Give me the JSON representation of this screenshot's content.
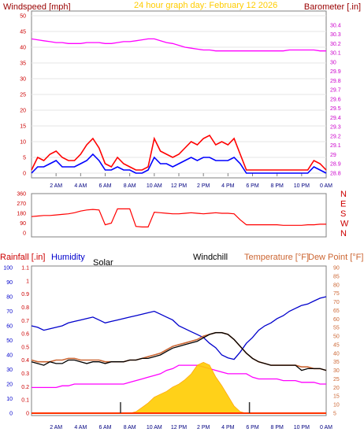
{
  "header": {
    "title": "24 hour graph day: February 12 2026",
    "left_label": "Windspeed [mph]",
    "right_label": "Barometer [.in]"
  },
  "panel3_labels": {
    "rainfall": "Rainfall [.in]",
    "humidity": "Humidity",
    "solar": "Solar",
    "windchill": "Windchill",
    "temperature": "Temperature [°F]",
    "dewpoint": "Dew Point [°F]"
  },
  "colors": {
    "windspeed_gust": "#ff0000",
    "windspeed_avg": "#0000ff",
    "barometer": "#ff00ff",
    "title": "#ffcc00",
    "header_label": "#990000",
    "direction": "#ff0000",
    "rainfall": "#cc0000",
    "humidity": "#0000cc",
    "windchill": "#000000",
    "temperature": "#cc6633",
    "dewpoint": "#ff00ff",
    "solar": "#ffcc00",
    "rain_line": "#ff3300"
  },
  "chart_data": [
    {
      "type": "line",
      "title": "24 hour graph day: February 12 2026",
      "ylabel": "Windspeed [mph]",
      "y2label": "Barometer [.in]",
      "x_ticks": [
        "2 AM",
        "4 AM",
        "6 AM",
        "8 AM",
        "10 AM",
        "12 PM",
        "2 PM",
        "4 PM",
        "6 PM",
        "8 PM",
        "10 PM",
        "0 AM"
      ],
      "ylim": [
        0,
        50
      ],
      "y_ticks": [
        "0",
        "5",
        "10",
        "15",
        "20",
        "25",
        "30",
        "35",
        "40",
        "45",
        "50"
      ],
      "y2lim": [
        28.8,
        30.5
      ],
      "y2_ticks": [
        "28.8",
        "28.9",
        "29",
        "29.1",
        "29.2",
        "29.3",
        "29.4",
        "29.5",
        "29.6",
        "29.7",
        "29.8",
        "29.9",
        "30",
        "30.1",
        "30.2",
        "30.3",
        "30.4"
      ],
      "x": [
        0,
        0.5,
        1,
        1.5,
        2,
        2.5,
        3,
        3.5,
        4,
        4.5,
        5,
        5.5,
        6,
        6.5,
        7,
        7.5,
        8,
        8.5,
        9,
        9.5,
        10,
        10.5,
        11,
        11.5,
        12,
        12.5,
        13,
        13.5,
        14,
        14.5,
        15,
        15.5,
        16,
        16.5,
        17,
        17.5,
        18,
        18.5,
        19,
        19.5,
        20,
        20.5,
        21,
        21.5,
        22,
        22.5,
        23,
        23.5,
        24
      ],
      "series": [
        {
          "name": "Wind Gust",
          "axis": "left",
          "values": [
            1,
            5,
            4,
            6,
            7,
            5,
            4,
            4,
            6,
            9,
            11,
            8,
            3,
            2,
            5,
            3,
            2,
            1,
            1,
            2,
            11,
            7,
            6,
            5,
            6,
            8,
            10,
            9,
            11,
            12,
            9,
            10,
            9,
            11,
            6,
            1,
            1,
            1,
            1,
            1,
            1,
            1,
            1,
            1,
            1,
            1,
            4,
            3,
            1
          ]
        },
        {
          "name": "Wind Speed",
          "axis": "left",
          "values": [
            0,
            2,
            2,
            3,
            4,
            2,
            2,
            2,
            3,
            4,
            6,
            4,
            1,
            1,
            2,
            1,
            1,
            0,
            0,
            1,
            5,
            3,
            3,
            2,
            3,
            4,
            5,
            4,
            5,
            5,
            4,
            4,
            4,
            5,
            3,
            0,
            0,
            0,
            0,
            0,
            0,
            0,
            0,
            0,
            0,
            0,
            2,
            1,
            0
          ]
        },
        {
          "name": "Barometer",
          "axis": "right",
          "values": [
            30.25,
            30.24,
            30.23,
            30.22,
            30.21,
            30.21,
            30.2,
            30.2,
            30.2,
            30.21,
            30.21,
            30.21,
            30.2,
            30.2,
            30.21,
            30.22,
            30.22,
            30.23,
            30.24,
            30.25,
            30.25,
            30.23,
            30.21,
            30.2,
            30.18,
            30.16,
            30.15,
            30.14,
            30.13,
            30.13,
            30.12,
            30.12,
            30.12,
            30.12,
            30.12,
            30.12,
            30.12,
            30.12,
            30.12,
            30.12,
            30.12,
            30.12,
            30.13,
            30.13,
            30.13,
            30.13,
            30.13,
            30.12,
            30.12
          ]
        }
      ]
    },
    {
      "type": "line",
      "ylim": [
        0,
        360
      ],
      "y_ticks": [
        "0",
        "90",
        "180",
        "270",
        "360"
      ],
      "y2_ticks": [
        "N",
        "W",
        "S",
        "E",
        "N"
      ],
      "x": [
        0,
        0.5,
        1,
        1.5,
        2,
        2.5,
        3,
        3.5,
        4,
        4.5,
        5,
        5.5,
        6,
        6.5,
        7,
        7.5,
        8,
        8.5,
        9,
        9.5,
        10,
        10.5,
        11,
        11.5,
        12,
        12.5,
        13,
        13.5,
        14,
        14.5,
        15,
        15.5,
        16,
        16.5,
        17,
        17.5,
        18,
        18.5,
        19,
        19.5,
        20,
        20.5,
        21,
        21.5,
        22,
        22.5,
        23,
        23.5,
        24
      ],
      "series": [
        {
          "name": "Wind Direction",
          "values": [
            150,
            155,
            160,
            160,
            165,
            170,
            175,
            185,
            200,
            210,
            215,
            210,
            75,
            90,
            220,
            220,
            220,
            60,
            55,
            55,
            190,
            185,
            180,
            175,
            175,
            180,
            185,
            180,
            175,
            180,
            185,
            180,
            180,
            175,
            120,
            75,
            75,
            75,
            75,
            75,
            75,
            70,
            70,
            70,
            70,
            75,
            75,
            80,
            80
          ]
        }
      ]
    },
    {
      "type": "line",
      "ylabel": "Rainfall [.in]",
      "ylim": [
        0,
        100
      ],
      "y_ticks": [
        "0",
        "10",
        "20",
        "30",
        "40",
        "50",
        "60",
        "70",
        "80",
        "90",
        "100"
      ],
      "y_ticks_rain": [
        "0",
        "0.1",
        "0.2",
        "0.3",
        "0.4",
        "0.5",
        "0.6",
        "0.7",
        "0.8",
        "0.9",
        "1",
        "1.1"
      ],
      "y2label": "Temperature [°F]",
      "y2lim": [
        5,
        90
      ],
      "y2_ticks": [
        "5",
        "10",
        "15",
        "20",
        "25",
        "30",
        "35",
        "40",
        "45",
        "50",
        "55",
        "60",
        "65",
        "70",
        "75",
        "80",
        "85",
        "90"
      ],
      "x": [
        0,
        0.5,
        1,
        1.5,
        2,
        2.5,
        3,
        3.5,
        4,
        4.5,
        5,
        5.5,
        6,
        6.5,
        7,
        7.5,
        8,
        8.5,
        9,
        9.5,
        10,
        10.5,
        11,
        11.5,
        12,
        12.5,
        13,
        13.5,
        14,
        14.5,
        15,
        15.5,
        16,
        16.5,
        17,
        17.5,
        18,
        18.5,
        19,
        19.5,
        20,
        20.5,
        21,
        21.5,
        22,
        22.5,
        23,
        23.5,
        24
      ],
      "series": [
        {
          "name": "Humidity",
          "axis": "left",
          "values": [
            60,
            59,
            57,
            58,
            59,
            60,
            62,
            63,
            64,
            65,
            66,
            64,
            62,
            63,
            64,
            65,
            66,
            67,
            68,
            69,
            70,
            68,
            66,
            64,
            60,
            58,
            56,
            54,
            52,
            48,
            45,
            40,
            38,
            37,
            42,
            48,
            52,
            57,
            60,
            62,
            65,
            67,
            70,
            72,
            74,
            75,
            77,
            79,
            80
          ]
        },
        {
          "name": "Temperature",
          "axis": "right",
          "values": [
            36,
            35,
            35,
            35,
            36,
            36,
            37,
            37,
            36,
            36,
            36,
            36,
            35,
            35,
            35,
            35,
            36,
            36,
            37,
            38,
            39,
            40,
            42,
            44,
            45,
            46,
            47,
            48,
            50,
            51,
            52,
            52,
            51,
            48,
            44,
            40,
            37,
            35,
            34,
            33,
            33,
            33,
            33,
            33,
            32,
            32,
            31,
            31,
            30
          ]
        },
        {
          "name": "Windchill",
          "axis": "right",
          "values": [
            35,
            34,
            33,
            35,
            34,
            34,
            36,
            36,
            35,
            34,
            35,
            35,
            34,
            35,
            35,
            35,
            36,
            36,
            37,
            37,
            38,
            39,
            41,
            43,
            44,
            45,
            46,
            47,
            49,
            51,
            52,
            52,
            51,
            48,
            44,
            40,
            37,
            35,
            34,
            33,
            33,
            33,
            33,
            33,
            30,
            31,
            31,
            31,
            30
          ]
        },
        {
          "name": "Dew Point",
          "axis": "right",
          "values": [
            20,
            20,
            20,
            20,
            20,
            21,
            21,
            22,
            22,
            22,
            22,
            22,
            22,
            22,
            22,
            22,
            23,
            24,
            25,
            26,
            27,
            28,
            30,
            31,
            33,
            33,
            33,
            33,
            32,
            31,
            30,
            29,
            28,
            28,
            28,
            28,
            26,
            25,
            25,
            25,
            25,
            24,
            24,
            24,
            23,
            23,
            23,
            22,
            22
          ]
        },
        {
          "name": "Solar",
          "axis": "left",
          "values": [
            0,
            0,
            0,
            0,
            0,
            0,
            0,
            0,
            0,
            0,
            0,
            0,
            0,
            0,
            0,
            0,
            0,
            1,
            4,
            7,
            11,
            13,
            15,
            18,
            20,
            23,
            27,
            33,
            35,
            33,
            25,
            19,
            12,
            5,
            1,
            0,
            0,
            0,
            0,
            0,
            0,
            0,
            0,
            0,
            0,
            0,
            0,
            0,
            0
          ]
        },
        {
          "name": "Rainfall",
          "axis": "rain",
          "values": [
            0,
            0,
            0,
            0,
            0,
            0,
            0,
            0,
            0,
            0,
            0,
            0,
            0,
            0,
            0,
            0,
            0,
            0,
            0,
            0,
            0,
            0,
            0,
            0,
            0,
            0,
            0,
            0,
            0,
            0,
            0,
            0,
            0,
            0,
            0,
            0,
            0,
            0,
            0,
            0,
            0,
            0,
            0,
            0,
            0,
            0,
            0,
            0,
            0
          ]
        }
      ]
    }
  ]
}
